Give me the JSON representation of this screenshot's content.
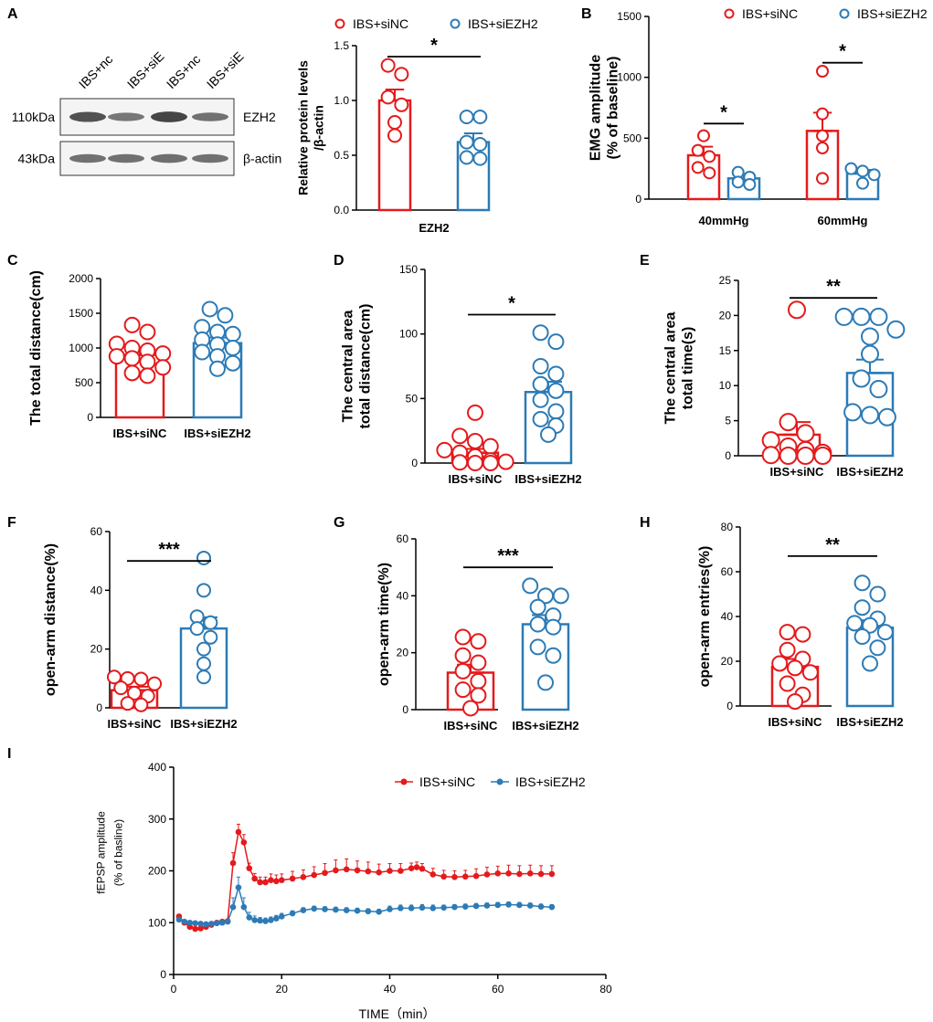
{
  "colors": {
    "red": "#e41a1c",
    "blue": "#2c7bb6",
    "axis": "#000000"
  },
  "western_blot": {
    "panel_label": "A",
    "lanes": [
      "IBS+nc",
      "IBS+siE",
      "IBS+nc",
      "IBS+siE"
    ],
    "rows": [
      {
        "mw": "110kDa",
        "protein": "EZH2",
        "intensity": [
          0.85,
          0.55,
          0.95,
          0.6
        ]
      },
      {
        "mw": "43kDa",
        "protein": "β-actin",
        "intensity": [
          0.6,
          0.6,
          0.62,
          0.6
        ]
      }
    ]
  },
  "chart_data": [
    {
      "id": "A2",
      "type": "bar",
      "panel_label": "",
      "title": "",
      "xlabel": "EZH2",
      "ylabel": [
        "Relative protein levels",
        "/β-actin"
      ],
      "ylim": [
        0,
        1.5
      ],
      "yticks": [
        "0.0",
        "0.5",
        "1.0",
        "1.5"
      ],
      "categories": [
        "IBS+siNC",
        "IBS+siEZH2"
      ],
      "show_category_labels": false,
      "legend": [
        "IBS+siNC",
        "IBS+siEZH2"
      ],
      "series": [
        {
          "name": "IBS+siNC",
          "mean": 1.0,
          "sem": 0.1,
          "points": [
            1.32,
            1.24,
            1.03,
            0.96,
            0.8,
            0.68
          ]
        },
        {
          "name": "IBS+siEZH2",
          "mean": 0.62,
          "sem": 0.08,
          "points": [
            0.85,
            0.85,
            0.62,
            0.6,
            0.48,
            0.47
          ]
        }
      ],
      "significance": [
        {
          "from": 0,
          "to": 1,
          "label": "*",
          "y": 1.4
        }
      ]
    },
    {
      "id": "B",
      "type": "bar",
      "panel_label": "B",
      "title": "",
      "xlabel": "",
      "ylabel": [
        "EMG amplitude",
        "(% of baseline)"
      ],
      "ylim": [
        0,
        1500
      ],
      "yticks": [
        "0",
        "500",
        "1000",
        "1500"
      ],
      "groups": [
        "40mmHg",
        "60mmHg"
      ],
      "legend": [
        "IBS+siNC",
        "IBS+siEZH2"
      ],
      "series": [
        {
          "name": "IBS+siNC",
          "means": [
            360,
            560
          ],
          "sems": [
            70,
            150
          ],
          "points": [
            [
              520,
              400,
              350,
              260,
              215
            ],
            [
              1050,
              700,
              520,
              420,
              170
            ]
          ]
        },
        {
          "name": "IBS+siEZH2",
          "means": [
            170,
            210
          ],
          "sems": [
            35,
            30
          ],
          "points": [
            [
              220,
              180,
              140,
              120
            ],
            [
              250,
              230,
              200,
              130
            ]
          ]
        }
      ],
      "significance": [
        {
          "group": 0,
          "label": "*",
          "y": 620
        },
        {
          "group": 1,
          "label": "*",
          "y": 1120
        }
      ]
    },
    {
      "id": "C",
      "type": "bar",
      "panel_label": "C",
      "title": "",
      "xlabel": "",
      "ylabel": [
        "The total distance(cm)"
      ],
      "ylim": [
        0,
        2000
      ],
      "yticks": [
        "0",
        "500",
        "1000",
        "1500",
        "2000"
      ],
      "categories": [
        "IBS+siNC",
        "IBS+siEZH2"
      ],
      "show_category_labels": true,
      "legend": [],
      "series": [
        {
          "name": "IBS+siNC",
          "mean": 900,
          "sem": 70,
          "points": [
            1330,
            1230,
            1060,
            1000,
            960,
            920,
            880,
            850,
            800,
            720,
            640,
            600
          ]
        },
        {
          "name": "IBS+siEZH2",
          "mean": 1070,
          "sem": 80,
          "points": [
            1560,
            1470,
            1300,
            1230,
            1200,
            1120,
            1050,
            1000,
            940,
            880,
            780,
            700
          ]
        }
      ],
      "significance": []
    },
    {
      "id": "D",
      "type": "bar",
      "panel_label": "D",
      "title": "",
      "xlabel": "",
      "ylabel": [
        "The central area",
        "total distance(cm)"
      ],
      "ylim": [
        0,
        150
      ],
      "yticks": [
        "0",
        "50",
        "100",
        "150"
      ],
      "categories": [
        "IBS+siNC",
        "IBS+siEZH2"
      ],
      "show_category_labels": true,
      "legend": [],
      "series": [
        {
          "name": "IBS+siNC",
          "mean": 8,
          "sem": 3,
          "points": [
            39,
            21,
            17,
            13,
            10,
            8,
            5,
            2,
            1,
            0.5,
            0,
            0
          ]
        },
        {
          "name": "IBS+siEZH2",
          "mean": 55,
          "sem": 8,
          "points": [
            101,
            94,
            75,
            69,
            61,
            56,
            49,
            40,
            34,
            29,
            22
          ]
        }
      ],
      "significance": [
        {
          "from": 0,
          "to": 1,
          "label": "*",
          "y": 115
        }
      ]
    },
    {
      "id": "E",
      "type": "bar",
      "panel_label": "E",
      "title": "",
      "xlabel": "",
      "ylabel": [
        "The central area",
        "total time(s)"
      ],
      "ylim": [
        0,
        25
      ],
      "yticks": [
        "0",
        "5",
        "10",
        "15",
        "20",
        "25"
      ],
      "categories": [
        "IBS+siNC",
        "IBS+siEZH2"
      ],
      "show_category_labels": true,
      "legend": [],
      "series": [
        {
          "name": "IBS+siNC",
          "mean": 3,
          "sem": 1.8,
          "points": [
            20.8,
            4.8,
            3.2,
            2.2,
            1.3,
            0.8,
            0.4,
            0.1,
            0,
            0,
            0
          ]
        },
        {
          "name": "IBS+siEZH2",
          "mean": 11.8,
          "sem": 1.9,
          "points": [
            19.8,
            19.8,
            19.8,
            18,
            17,
            14.5,
            11,
            9.5,
            6.2,
            5.8,
            5.5
          ]
        }
      ],
      "significance": [
        {
          "from": 0,
          "to": 1,
          "label": "**",
          "y": 22.5
        }
      ]
    },
    {
      "id": "F",
      "type": "bar",
      "panel_label": "F",
      "title": "",
      "xlabel": "",
      "ylabel": [
        "open-arm distance(%)"
      ],
      "ylim": [
        0,
        60
      ],
      "yticks": [
        "0",
        "20",
        "40",
        "60"
      ],
      "categories": [
        "IBS+siNC",
        "IBS+siEZH2"
      ],
      "show_category_labels": true,
      "legend": [],
      "series": [
        {
          "name": "IBS+siNC",
          "mean": 6,
          "sem": 1.2,
          "points": [
            10.5,
            10,
            9.8,
            8.2,
            6.8,
            5,
            4,
            1.5,
            1
          ]
        },
        {
          "name": "IBS+siEZH2",
          "mean": 27,
          "sem": 3.8,
          "points": [
            51,
            40,
            31,
            29,
            27,
            24,
            20,
            15,
            10.5
          ]
        }
      ],
      "significance": [
        {
          "from": 0,
          "to": 1,
          "label": "***",
          "y": 50
        }
      ]
    },
    {
      "id": "G",
      "type": "bar",
      "panel_label": "G",
      "title": "",
      "xlabel": "",
      "ylabel": [
        "open-arm time(%)"
      ],
      "ylim": [
        0,
        60
      ],
      "yticks": [
        "0",
        "20",
        "40",
        "60"
      ],
      "categories": [
        "IBS+siNC",
        "IBS+siEZH2"
      ],
      "show_category_labels": true,
      "legend": [],
      "series": [
        {
          "name": "IBS+siNC",
          "mean": 13,
          "sem": 2.8,
          "points": [
            25.5,
            24,
            19,
            16.5,
            13.5,
            10,
            7,
            5,
            0.5
          ]
        },
        {
          "name": "IBS+siEZH2",
          "mean": 30,
          "sem": 3.2,
          "points": [
            43.5,
            40,
            40,
            36,
            33,
            30,
            29,
            22,
            19,
            9.5
          ]
        }
      ],
      "significance": [
        {
          "from": 0,
          "to": 1,
          "label": "***",
          "y": 50
        }
      ]
    },
    {
      "id": "H",
      "type": "bar",
      "panel_label": "H",
      "title": "",
      "xlabel": "",
      "ylabel": [
        "open-arm entries(%)"
      ],
      "ylim": [
        0,
        80
      ],
      "yticks": [
        "0",
        "20",
        "40",
        "60",
        "80"
      ],
      "categories": [
        "IBS+siNC",
        "IBS+siEZH2"
      ],
      "show_category_labels": true,
      "legend": [],
      "series": [
        {
          "name": "IBS+siNC",
          "mean": 17.5,
          "sem": 3.5,
          "points": [
            33,
            32,
            25,
            21,
            19,
            17,
            15,
            10,
            5,
            2
          ]
        },
        {
          "name": "IBS+siEZH2",
          "mean": 35,
          "sem": 3.3,
          "points": [
            55,
            50,
            44,
            39,
            37,
            36,
            33,
            31,
            26,
            19
          ]
        }
      ],
      "significance": [
        {
          "from": 0,
          "to": 1,
          "label": "**",
          "y": 67
        }
      ]
    },
    {
      "id": "I",
      "type": "line",
      "panel_label": "I",
      "title": "",
      "xlabel": "TIME（min）",
      "ylabel": [
        "fEPSP amplitude",
        "(% of basline)"
      ],
      "xlim": [
        0,
        80
      ],
      "ylim": [
        0,
        400
      ],
      "xticks": [
        "0",
        "20",
        "40",
        "60",
        "80"
      ],
      "yticks": [
        "0",
        "100",
        "200",
        "300",
        "400"
      ],
      "legend": [
        "IBS+siNC",
        "IBS+siEZH2"
      ],
      "series": [
        {
          "name": "IBS+siNC",
          "x": [
            1,
            2,
            3,
            4,
            5,
            6,
            7,
            8,
            9,
            10,
            11,
            12,
            13,
            14,
            15,
            16,
            17,
            18,
            19,
            20,
            22,
            24,
            26,
            28,
            30,
            32,
            34,
            36,
            38,
            40,
            42,
            44,
            45,
            46,
            48,
            50,
            52,
            54,
            56,
            58,
            60,
            62,
            64,
            66,
            68,
            70
          ],
          "y": [
            112,
            100,
            92,
            88,
            89,
            92,
            96,
            100,
            102,
            103,
            215,
            275,
            255,
            205,
            185,
            178,
            178,
            182,
            180,
            182,
            185,
            188,
            192,
            196,
            201,
            203,
            201,
            199,
            197,
            200,
            200,
            205,
            207,
            204,
            193,
            189,
            188,
            189,
            190,
            193,
            195,
            195,
            194,
            195,
            194,
            194
          ],
          "err": [
            0,
            0,
            0,
            0,
            0,
            0,
            0,
            0,
            0,
            0,
            20,
            15,
            15,
            10,
            10,
            10,
            10,
            12,
            12,
            12,
            14,
            14,
            16,
            18,
            20,
            20,
            18,
            18,
            16,
            14,
            14,
            10,
            10,
            10,
            12,
            12,
            12,
            12,
            14,
            14,
            14,
            16,
            16,
            16,
            16,
            16
          ]
        },
        {
          "name": "IBS+siEZH2",
          "x": [
            1,
            2,
            3,
            4,
            5,
            6,
            7,
            8,
            9,
            10,
            11,
            12,
            13,
            14,
            15,
            16,
            17,
            18,
            19,
            20,
            22,
            24,
            26,
            28,
            30,
            32,
            34,
            36,
            38,
            40,
            42,
            44,
            46,
            48,
            50,
            52,
            54,
            56,
            58,
            60,
            62,
            64,
            66,
            68,
            70
          ],
          "y": [
            106,
            102,
            100,
            99,
            98,
            97,
            98,
            99,
            100,
            102,
            130,
            168,
            130,
            110,
            105,
            104,
            103,
            105,
            108,
            112,
            118,
            124,
            127,
            126,
            125,
            124,
            123,
            122,
            121,
            126,
            128,
            128,
            129,
            128,
            129,
            130,
            131,
            132,
            133,
            134,
            135,
            134,
            133,
            131,
            130
          ],
          "err": [
            0,
            0,
            0,
            0,
            0,
            0,
            0,
            0,
            0,
            0,
            18,
            20,
            18,
            10,
            8,
            6,
            6,
            6,
            6,
            6,
            5,
            5,
            5,
            5,
            5,
            5,
            5,
            5,
            5,
            6,
            6,
            6,
            6,
            6,
            5,
            5,
            5,
            5,
            5,
            5,
            5,
            5,
            5,
            5,
            5
          ]
        }
      ]
    }
  ]
}
